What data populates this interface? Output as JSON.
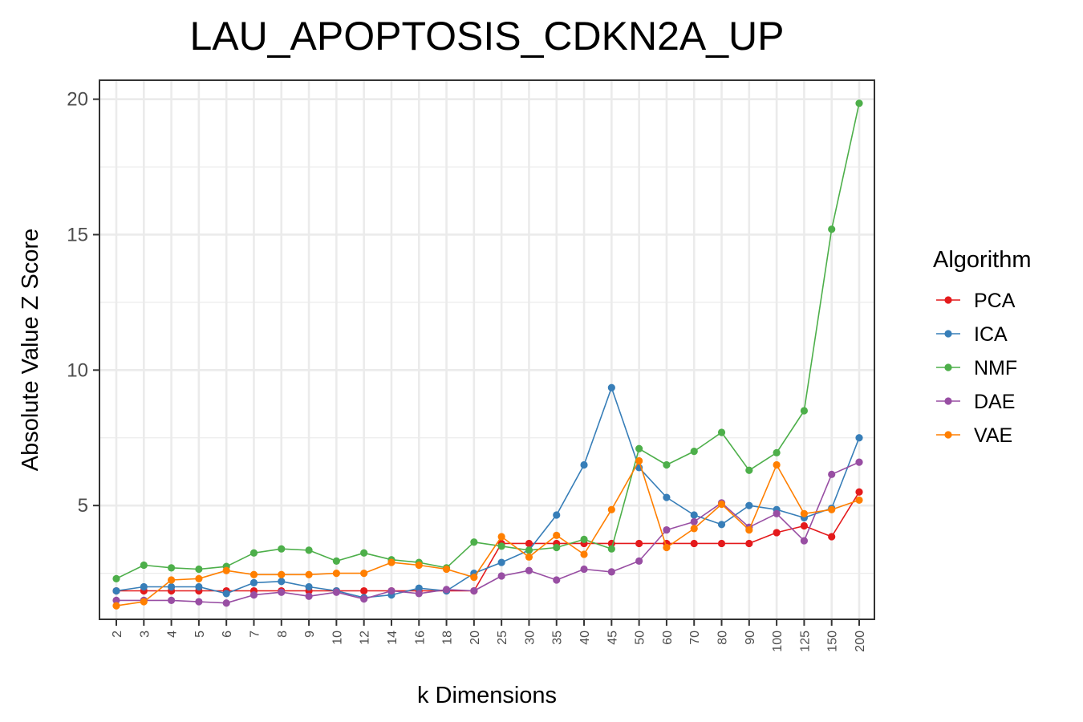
{
  "chart_data": {
    "type": "line",
    "title": "LAU_APOPTOSIS_CDKN2A_UP",
    "xlabel": "k Dimensions",
    "ylabel": "Absolute Value Z Score",
    "categories": [
      "2",
      "3",
      "4",
      "5",
      "6",
      "7",
      "8",
      "9",
      "10",
      "12",
      "14",
      "16",
      "18",
      "20",
      "25",
      "30",
      "35",
      "40",
      "45",
      "50",
      "60",
      "70",
      "80",
      "90",
      "100",
      "125",
      "150",
      "200"
    ],
    "ylim": [
      0.8,
      20.7
    ],
    "yticks": [
      5,
      10,
      15,
      20
    ],
    "grid": true,
    "legend_title": "Algorithm",
    "legend_position": "right",
    "series": [
      {
        "name": "PCA",
        "color": "#e41a1c",
        "values": [
          1.85,
          1.85,
          1.85,
          1.85,
          1.85,
          1.85,
          1.85,
          1.85,
          1.85,
          1.85,
          1.85,
          1.85,
          1.85,
          1.85,
          3.6,
          3.6,
          3.6,
          3.6,
          3.6,
          3.6,
          3.6,
          3.6,
          3.6,
          3.6,
          4.0,
          4.25,
          3.85,
          5.5
        ]
      },
      {
        "name": "ICA",
        "color": "#377eb8",
        "values": [
          1.85,
          2.0,
          2.0,
          2.0,
          1.75,
          2.15,
          2.2,
          2.0,
          1.85,
          1.6,
          1.7,
          1.95,
          1.85,
          2.5,
          2.9,
          3.35,
          4.65,
          6.5,
          9.35,
          6.4,
          5.3,
          4.65,
          4.3,
          5.0,
          4.85,
          4.55,
          4.9,
          7.5
        ]
      },
      {
        "name": "NMF",
        "color": "#4daf4a",
        "values": [
          2.3,
          2.8,
          2.7,
          2.65,
          2.75,
          3.25,
          3.4,
          3.35,
          2.95,
          3.25,
          3.0,
          2.9,
          2.7,
          3.65,
          3.5,
          3.35,
          3.45,
          3.75,
          3.4,
          7.1,
          6.5,
          7.0,
          7.7,
          6.3,
          6.95,
          8.5,
          15.2,
          19.85
        ]
      },
      {
        "name": "DAE",
        "color": "#984ea3",
        "values": [
          1.5,
          1.5,
          1.5,
          1.45,
          1.4,
          1.7,
          1.8,
          1.65,
          1.8,
          1.55,
          1.85,
          1.75,
          1.9,
          1.85,
          2.4,
          2.6,
          2.25,
          2.65,
          2.55,
          2.95,
          4.1,
          4.4,
          5.1,
          4.2,
          4.7,
          3.7,
          6.15,
          6.6
        ]
      },
      {
        "name": "VAE",
        "color": "#ff7f00",
        "values": [
          1.3,
          1.45,
          2.25,
          2.3,
          2.6,
          2.45,
          2.45,
          2.45,
          2.5,
          2.5,
          2.9,
          2.8,
          2.65,
          2.35,
          3.85,
          3.1,
          3.9,
          3.2,
          4.85,
          6.65,
          3.45,
          4.15,
          5.05,
          4.1,
          6.5,
          4.7,
          4.85,
          5.2
        ]
      }
    ]
  }
}
